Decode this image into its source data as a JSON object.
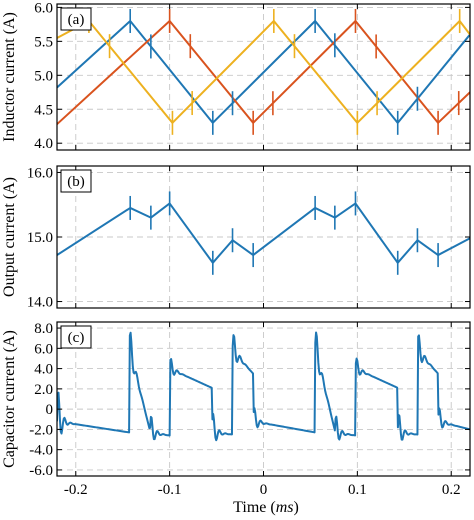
{
  "colors": {
    "blue": "#1f77b4",
    "red": "#d9531e",
    "yellow": "#edb120",
    "grid": "#c8c8c8"
  },
  "xlabel": {
    "prefix": "Time (",
    "unit": "ms",
    "suffix": ")"
  },
  "chart_data": [
    {
      "type": "line",
      "panel_label": "(a)",
      "ylabel": "Inductor current (A)",
      "xlim": [
        -0.22,
        0.22
      ],
      "ylim": [
        3.9,
        6.05
      ],
      "yticks": [
        4.0,
        4.5,
        5.0,
        5.5,
        6.0
      ],
      "ytick_labels": [
        "4.0",
        "4.5",
        "5.0",
        "5.5",
        "6.0"
      ],
      "xticks": [
        -0.2,
        -0.1,
        0,
        0.1,
        0.2
      ],
      "xtick_labels": [
        "-0.2",
        "-0.1",
        "0",
        "0.1",
        "0.2"
      ],
      "show_xtick_labels": false,
      "grid": true,
      "series": [
        {
          "color": "blue",
          "x": [
            -0.22,
            -0.142,
            -0.054,
            0.055,
            0.143,
            0.22
          ],
          "y": [
            4.82,
            5.8,
            4.3,
            5.8,
            4.3,
            5.6
          ]
        },
        {
          "color": "red",
          "x": [
            -0.22,
            -0.1,
            -0.011,
            0.098,
            0.186,
            0.22
          ],
          "y": [
            4.28,
            5.8,
            4.3,
            5.8,
            4.3,
            4.75
          ]
        },
        {
          "color": "yellow",
          "x": [
            -0.22,
            -0.186,
            -0.097,
            0.011,
            0.1,
            0.209,
            0.22
          ],
          "y": [
            5.55,
            5.8,
            4.3,
            5.8,
            4.3,
            5.8,
            5.6
          ]
        }
      ],
      "spikes": [
        {
          "color": "blue",
          "x": [
            -0.142,
            -0.12,
            -0.054,
            -0.033,
            0.055,
            0.076,
            0.143,
            0.164
          ]
        },
        {
          "color": "red",
          "x": [
            -0.1,
            -0.078,
            -0.011,
            0.01,
            0.098,
            0.12,
            0.186,
            0.208
          ]
        },
        {
          "color": "yellow",
          "x": [
            -0.186,
            -0.164,
            -0.097,
            -0.076,
            0.011,
            0.033,
            0.1,
            0.121,
            0.209
          ]
        }
      ]
    },
    {
      "type": "line",
      "panel_label": "(b)",
      "ylabel": "Output current (A)",
      "xlim": [
        -0.22,
        0.22
      ],
      "ylim": [
        13.9,
        16.1
      ],
      "yticks": [
        14.0,
        15.0,
        16.0
      ],
      "ytick_labels": [
        "14.0",
        "15.0",
        "16.0"
      ],
      "xticks": [
        -0.2,
        -0.1,
        0,
        0.1,
        0.2
      ],
      "xtick_labels": [
        "-0.2",
        "-0.1",
        "0",
        "0.1",
        "0.2"
      ],
      "show_xtick_labels": false,
      "grid": true,
      "series": [
        {
          "color": "blue",
          "x": [
            -0.22,
            -0.142,
            -0.12,
            -0.1,
            -0.054,
            -0.033,
            -0.011,
            0.055,
            0.076,
            0.098,
            0.143,
            0.164,
            0.186,
            0.22
          ],
          "y": [
            14.72,
            15.45,
            15.3,
            15.52,
            14.6,
            14.95,
            14.72,
            15.45,
            15.3,
            15.52,
            14.6,
            14.95,
            14.72,
            14.98
          ]
        }
      ],
      "spikes": [
        {
          "color": "blue",
          "x": [
            -0.142,
            -0.12,
            -0.1,
            -0.054,
            -0.033,
            -0.011,
            0.055,
            0.076,
            0.098,
            0.143,
            0.164,
            0.186
          ]
        }
      ]
    },
    {
      "type": "line",
      "panel_label": "(c)",
      "ylabel": "Capacitor current (A)",
      "xlim": [
        -0.22,
        0.22
      ],
      "ylim": [
        -6.6,
        8.6
      ],
      "yticks": [
        -6.0,
        -4.0,
        -2.0,
        0,
        2.0,
        4.0,
        6.0,
        8.0
      ],
      "ytick_labels": [
        "-6.0",
        "-4.0",
        "-2.0",
        "0",
        "2.0",
        "4.0",
        "6.0",
        "8.0"
      ],
      "xticks": [
        -0.2,
        -0.1,
        0,
        0.1,
        0.2
      ],
      "xtick_labels": [
        "-0.2",
        "-0.1",
        "0",
        "0.1",
        "0.2"
      ],
      "show_xtick_labels": true,
      "grid": true,
      "series": [
        {
          "color": "blue",
          "base": [
            {
              "x0": -0.22,
              "x1": -0.143,
              "y0": -1.2,
              "y1": -2.3
            },
            {
              "x0": -0.143,
              "x1": -0.121,
              "y0": 6.1,
              "y1": -2.1
            },
            {
              "x0": -0.121,
              "x1": -0.1,
              "y0": -2.3,
              "y1": -2.6
            },
            {
              "x0": -0.1,
              "x1": -0.055,
              "y0": 4.0,
              "y1": 2.1
            },
            {
              "x0": -0.055,
              "x1": -0.033,
              "y0": -2.3,
              "y1": -2.5
            },
            {
              "x0": -0.033,
              "x1": -0.011,
              "y0": 5.8,
              "y1": 3.5
            },
            {
              "x0": -0.011,
              "x1": 0.055,
              "y0": -1.2,
              "y1": -2.3
            },
            {
              "x0": 0.055,
              "x1": 0.076,
              "y0": 6.1,
              "y1": -2.1
            },
            {
              "x0": 0.076,
              "x1": 0.098,
              "y0": -2.3,
              "y1": -2.6
            },
            {
              "x0": 0.098,
              "x1": 0.143,
              "y0": 4.0,
              "y1": 2.1
            },
            {
              "x0": 0.143,
              "x1": 0.164,
              "y0": -2.3,
              "y1": -2.5
            },
            {
              "x0": 0.164,
              "x1": 0.186,
              "y0": 5.8,
              "y1": 3.5
            },
            {
              "x0": 0.186,
              "x1": 0.22,
              "y0": -1.2,
              "y1": -2.0
            }
          ],
          "ringing": [
            {
              "x": -0.22,
              "amp": 4.5
            },
            {
              "x": -0.143,
              "amp": 3.0
            },
            {
              "x": -0.121,
              "amp": 2.5
            },
            {
              "x": -0.1,
              "amp": 1.6
            },
            {
              "x": -0.055,
              "amp": 2.8
            },
            {
              "x": -0.033,
              "amp": 2.6
            },
            {
              "x": -0.011,
              "amp": 2.0
            },
            {
              "x": 0.055,
              "amp": 3.0
            },
            {
              "x": 0.076,
              "amp": 2.5
            },
            {
              "x": 0.098,
              "amp": 1.6
            },
            {
              "x": 0.143,
              "amp": 2.8
            },
            {
              "x": 0.164,
              "amp": 2.6
            },
            {
              "x": 0.186,
              "amp": 2.0
            }
          ]
        }
      ]
    }
  ]
}
